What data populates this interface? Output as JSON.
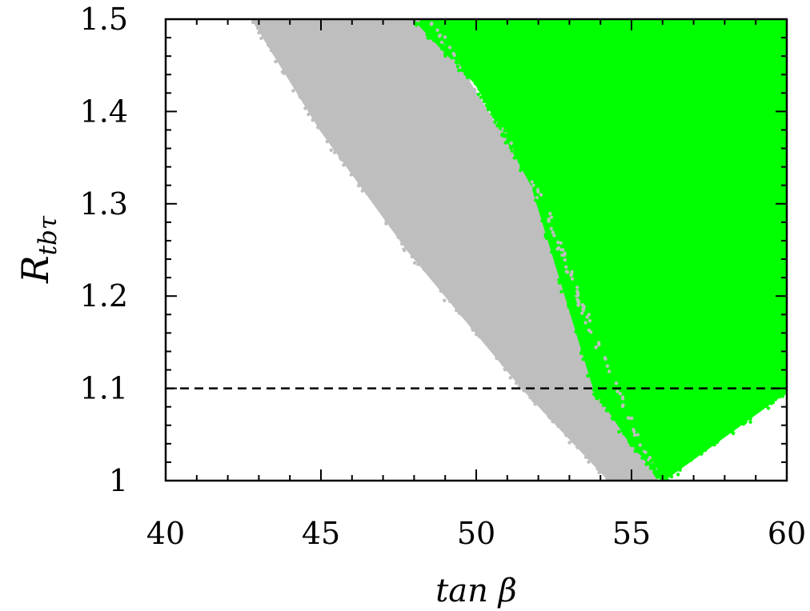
{
  "chart_data": {
    "type": "scatter",
    "title": "",
    "xlabel": "tan β",
    "ylabel_main": "R",
    "ylabel_sub": "tbτ",
    "xlim": [
      40,
      60
    ],
    "ylim": [
      1.0,
      1.5
    ],
    "x_ticks": [
      "40",
      "45",
      "50",
      "55",
      "60"
    ],
    "x_tick_values": [
      40,
      45,
      50,
      55,
      60
    ],
    "y_ticks": [
      "1",
      "1.1",
      "1.2",
      "1.3",
      "1.4",
      "1.5"
    ],
    "y_tick_values": [
      1.0,
      1.1,
      1.2,
      1.3,
      1.4,
      1.5
    ],
    "grid": false,
    "reference_line": {
      "y": 1.1,
      "style": "dashed",
      "color": "#000000"
    },
    "series": [
      {
        "color": "#bebebe",
        "description_region": [
          [
            42.8,
            1.5
          ],
          [
            48.5,
            1.5
          ],
          [
            52.2,
            1.3
          ],
          [
            53.5,
            1.18
          ],
          [
            55.8,
            1.0
          ],
          [
            54.3,
            1.0
          ],
          [
            51.5,
            1.1
          ],
          [
            47.8,
            1.25
          ],
          [
            45.0,
            1.38
          ]
        ]
      },
      {
        "color": "#00ff00",
        "description_region": [
          [
            48.0,
            1.5
          ],
          [
            60.0,
            1.5
          ],
          [
            60.0,
            1.1
          ],
          [
            59.3,
            1.08
          ],
          [
            56.0,
            1.0
          ],
          [
            54.8,
            1.05
          ],
          [
            53.8,
            1.1
          ],
          [
            51.8,
            1.32
          ],
          [
            50.0,
            1.43
          ]
        ]
      }
    ]
  }
}
